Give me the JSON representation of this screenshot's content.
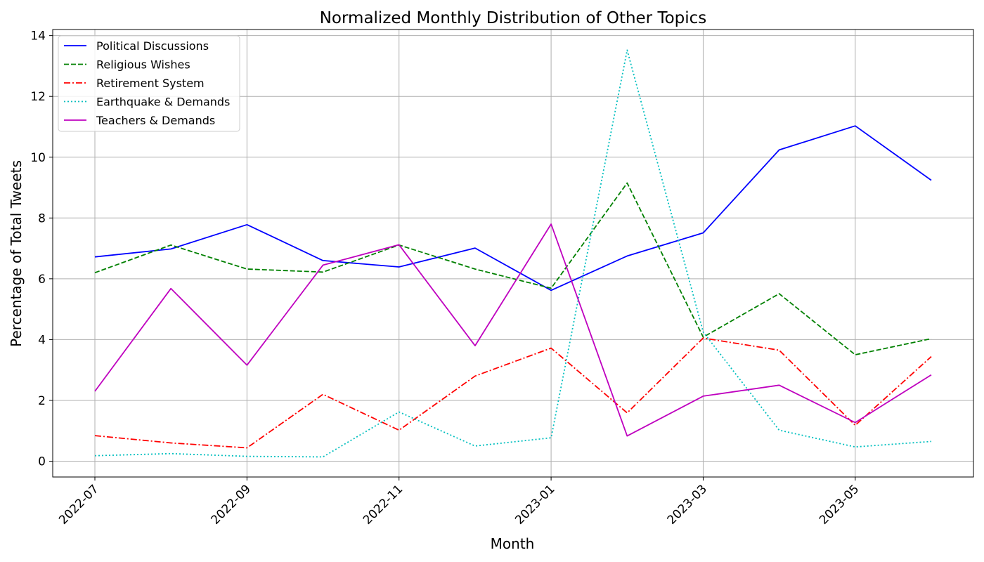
{
  "chart_data": {
    "type": "line",
    "title": "Normalized Monthly Distribution of Other Topics",
    "xlabel": "Month",
    "ylabel": "Percentage of Total Tweets",
    "x": [
      "2022-07",
      "2022-08",
      "2022-09",
      "2022-10",
      "2022-11",
      "2022-12",
      "2023-01",
      "2023-02",
      "2023-03",
      "2023-04",
      "2023-05",
      "2023-06"
    ],
    "x_tick_labels": [
      "2022-07",
      "2022-09",
      "2022-11",
      "2023-01",
      "2023-03",
      "2023-05"
    ],
    "y_ticks": [
      0,
      2,
      4,
      6,
      8,
      10,
      12,
      14
    ],
    "ylim": [
      -0.52,
      14.2
    ],
    "grid": true,
    "legend_position": "top-left",
    "series": [
      {
        "name": "Political Discussions",
        "color": "#0000ff",
        "style": "solid",
        "values": [
          6.72,
          6.98,
          7.78,
          6.6,
          6.39,
          7.01,
          5.62,
          6.75,
          7.51,
          10.24,
          11.03,
          9.24
        ]
      },
      {
        "name": "Religious Wishes",
        "color": "#008000",
        "style": "dashed",
        "values": [
          6.2,
          7.11,
          6.32,
          6.22,
          7.11,
          6.32,
          5.69,
          9.15,
          4.08,
          5.51,
          3.5,
          4.03
        ]
      },
      {
        "name": "Retirement System",
        "color": "#ff0000",
        "style": "dashdot",
        "values": [
          0.84,
          0.6,
          0.44,
          2.2,
          1.02,
          2.8,
          3.72,
          1.59,
          4.05,
          3.65,
          1.18,
          3.44
        ]
      },
      {
        "name": "Earthquake & Demands",
        "color": "#00bfbf",
        "style": "dotted",
        "values": [
          0.18,
          0.25,
          0.16,
          0.14,
          1.62,
          0.5,
          0.77,
          13.52,
          4.25,
          1.02,
          0.47,
          0.65
        ]
      },
      {
        "name": "Teachers & Demands",
        "color": "#bf00bf",
        "style": "solid",
        "values": [
          2.3,
          5.68,
          3.16,
          6.45,
          7.12,
          3.8,
          7.8,
          0.83,
          2.14,
          2.5,
          1.27,
          2.84
        ]
      }
    ]
  }
}
